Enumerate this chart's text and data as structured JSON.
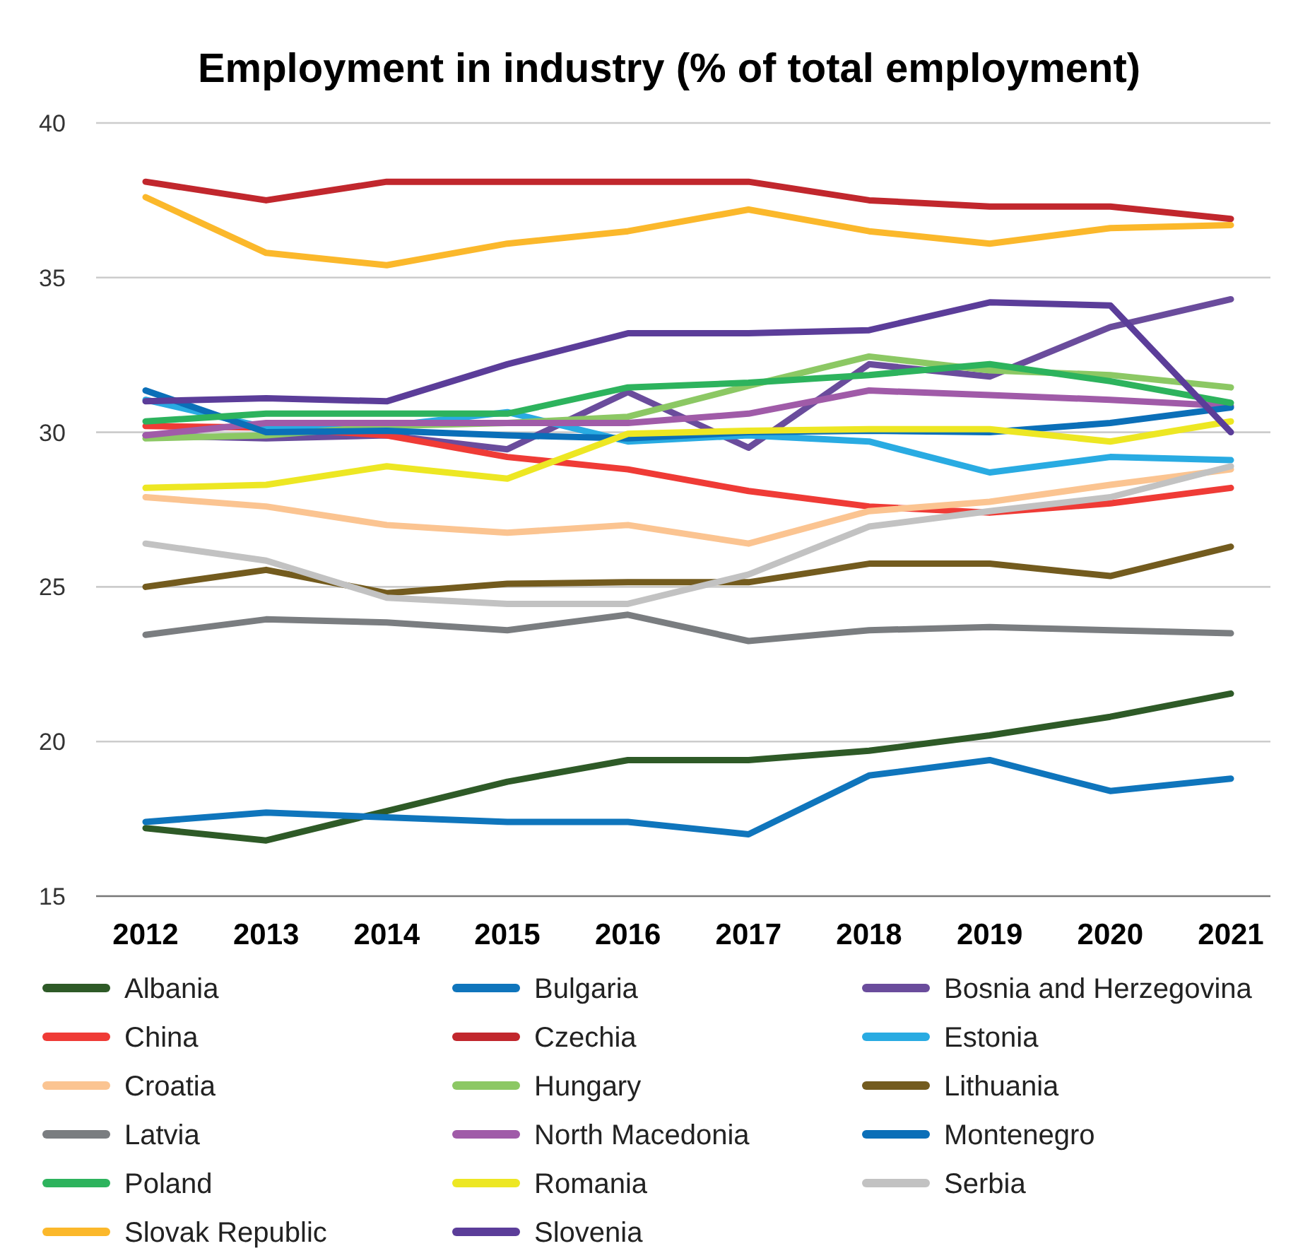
{
  "chart_data": {
    "type": "line",
    "title": "Employment in industry (% of total employment)",
    "categories": [
      "2012",
      "2013",
      "2014",
      "2015",
      "2016",
      "2017",
      "2018",
      "2019",
      "2020",
      "2021"
    ],
    "ylim": [
      15,
      40
    ],
    "yticks": [
      15,
      20,
      25,
      30,
      35,
      40
    ],
    "grid": "y",
    "legend": "bottom",
    "marker": "none",
    "line_style": "solid",
    "series": [
      {
        "name": "Albania",
        "color": "#2e5a27",
        "values": [
          17.2,
          16.8,
          17.75,
          18.7,
          19.4,
          19.4,
          19.7,
          20.2,
          20.8,
          21.55
        ]
      },
      {
        "name": "Bulgaria",
        "color": "#0f75bc",
        "values": [
          17.4,
          17.7,
          17.55,
          17.4,
          17.4,
          17.0,
          18.9,
          19.4,
          18.4,
          18.8
        ]
      },
      {
        "name": "Bosnia and Herzegovina",
        "color": "#6a4c9c",
        "values": [
          29.9,
          29.8,
          29.9,
          29.45,
          31.3,
          29.5,
          32.2,
          31.8,
          33.4,
          34.3
        ]
      },
      {
        "name": "China",
        "color": "#ef3b36",
        "values": [
          30.2,
          30.15,
          29.9,
          29.2,
          28.8,
          28.1,
          27.6,
          27.4,
          27.7,
          28.2
        ]
      },
      {
        "name": "Czechia",
        "color": "#c1272d",
        "values": [
          38.1,
          37.5,
          38.1,
          38.1,
          38.1,
          38.1,
          37.5,
          37.3,
          37.3,
          36.9
        ]
      },
      {
        "name": "Estonia",
        "color": "#29abe2",
        "values": [
          31.05,
          30.15,
          30.2,
          30.65,
          29.7,
          29.9,
          29.7,
          28.7,
          29.2,
          29.1
        ]
      },
      {
        "name": "Croatia",
        "color": "#fbc491",
        "values": [
          27.9,
          27.6,
          27.0,
          26.75,
          27.0,
          26.4,
          27.45,
          27.75,
          28.3,
          28.8
        ]
      },
      {
        "name": "Hungary",
        "color": "#8cc864",
        "values": [
          29.8,
          29.9,
          30.2,
          30.3,
          30.5,
          31.5,
          32.45,
          32.0,
          31.85,
          31.45
        ]
      },
      {
        "name": "Lithuania",
        "color": "#735b1e",
        "values": [
          25.0,
          25.55,
          24.8,
          25.1,
          25.15,
          25.15,
          25.75,
          25.75,
          25.35,
          26.3
        ]
      },
      {
        "name": "Latvia",
        "color": "#7a7d80",
        "values": [
          23.45,
          23.95,
          23.85,
          23.6,
          24.1,
          23.25,
          23.6,
          23.7,
          23.6,
          23.5
        ]
      },
      {
        "name": "North Macedonia",
        "color": "#a05ba8",
        "values": [
          29.9,
          30.3,
          30.3,
          30.3,
          30.3,
          30.6,
          31.35,
          31.2,
          31.05,
          30.85
        ]
      },
      {
        "name": "Montenegro",
        "color": "#0b6fb8",
        "values": [
          31.35,
          30.0,
          30.05,
          29.9,
          29.8,
          30.0,
          30.05,
          30.0,
          30.3,
          30.8
        ]
      },
      {
        "name": "Poland",
        "color": "#2db35d",
        "values": [
          30.35,
          30.6,
          30.6,
          30.6,
          31.45,
          31.6,
          31.85,
          32.2,
          31.65,
          30.95
        ]
      },
      {
        "name": "Romania",
        "color": "#ede723",
        "values": [
          28.2,
          28.3,
          28.9,
          28.5,
          29.95,
          30.05,
          30.1,
          30.1,
          29.7,
          30.35
        ]
      },
      {
        "name": "Serbia",
        "color": "#c2c2c2",
        "values": [
          26.4,
          25.85,
          24.65,
          24.45,
          24.45,
          25.4,
          26.95,
          27.45,
          27.9,
          28.9
        ]
      },
      {
        "name": "Slovak Republic",
        "color": "#fbb82b",
        "values": [
          37.6,
          35.8,
          35.4,
          36.1,
          36.5,
          37.2,
          36.5,
          36.1,
          36.6,
          36.7
        ]
      },
      {
        "name": "Slovenia",
        "color": "#5b3d99",
        "values": [
          31.0,
          31.1,
          31.0,
          32.2,
          33.2,
          33.2,
          33.3,
          34.2,
          34.1,
          30.0
        ]
      }
    ]
  }
}
